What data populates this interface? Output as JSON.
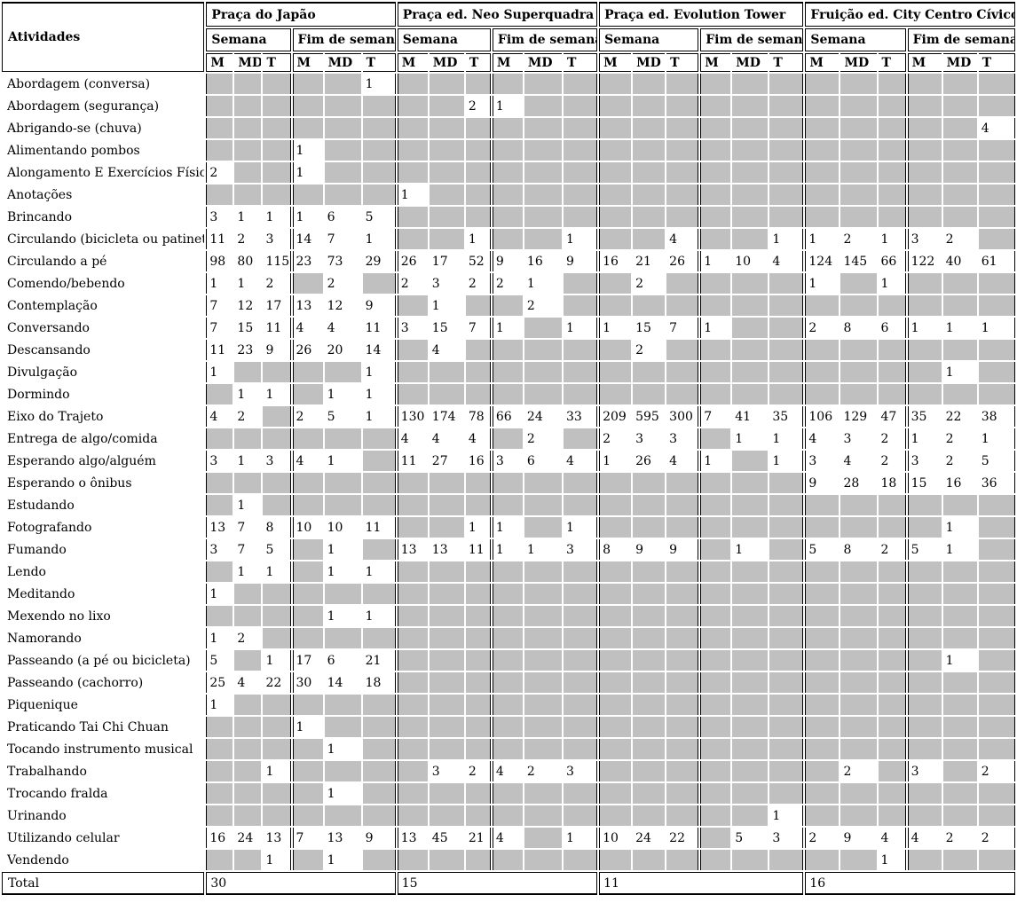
{
  "table": {
    "corner_label": "Atividades",
    "total_label": "Total",
    "period_labels": [
      "Semana",
      "Fim de semana"
    ],
    "time_labels": [
      "M",
      "MD",
      "T"
    ],
    "locations": [
      {
        "name": "Praça do Japão",
        "total": 30
      },
      {
        "name": "Praça ed. Neo Superquadra",
        "total": 15
      },
      {
        "name": "Praça ed. Evolution Tower",
        "total": 11
      },
      {
        "name": "Fruição ed. City Centro Cívico",
        "total": 16
      }
    ],
    "rows": [
      {
        "activity": "Abordagem (conversa)",
        "cells": [
          null,
          null,
          null,
          null,
          null,
          1,
          null,
          null,
          null,
          null,
          null,
          null,
          null,
          null,
          null,
          null,
          null,
          null,
          null,
          null,
          null,
          null,
          null,
          null
        ]
      },
      {
        "activity": "Abordagem (segurança)",
        "cells": [
          null,
          null,
          null,
          null,
          null,
          null,
          null,
          null,
          2,
          1,
          null,
          null,
          null,
          null,
          null,
          null,
          null,
          null,
          null,
          null,
          null,
          null,
          null,
          null
        ]
      },
      {
        "activity": "Abrigando-se (chuva)",
        "cells": [
          null,
          null,
          null,
          null,
          null,
          null,
          null,
          null,
          null,
          null,
          null,
          null,
          null,
          null,
          null,
          null,
          null,
          null,
          null,
          null,
          null,
          null,
          null,
          4
        ]
      },
      {
        "activity": "Alimentando pombos",
        "cells": [
          null,
          null,
          null,
          1,
          null,
          null,
          null,
          null,
          null,
          null,
          null,
          null,
          null,
          null,
          null,
          null,
          null,
          null,
          null,
          null,
          null,
          null,
          null,
          null
        ]
      },
      {
        "activity": "Alongamento E Exercícios Físicos",
        "cells": [
          2,
          null,
          null,
          1,
          null,
          null,
          null,
          null,
          null,
          null,
          null,
          null,
          null,
          null,
          null,
          null,
          null,
          null,
          null,
          null,
          null,
          null,
          null,
          null
        ]
      },
      {
        "activity": "Anotações",
        "cells": [
          null,
          null,
          null,
          null,
          null,
          null,
          1,
          null,
          null,
          null,
          null,
          null,
          null,
          null,
          null,
          null,
          null,
          null,
          null,
          null,
          null,
          null,
          null,
          null
        ]
      },
      {
        "activity": "Brincando",
        "cells": [
          3,
          1,
          1,
          1,
          6,
          5,
          null,
          null,
          null,
          null,
          null,
          null,
          null,
          null,
          null,
          null,
          null,
          null,
          null,
          null,
          null,
          null,
          null,
          null
        ]
      },
      {
        "activity": "Circulando (bicicleta ou patinete)",
        "cells": [
          11,
          2,
          3,
          14,
          7,
          1,
          null,
          null,
          1,
          null,
          null,
          1,
          null,
          null,
          4,
          null,
          null,
          1,
          1,
          2,
          1,
          3,
          2,
          null
        ]
      },
      {
        "activity": "Circulando a pé",
        "cells": [
          98,
          80,
          115,
          23,
          73,
          29,
          26,
          17,
          52,
          9,
          16,
          9,
          16,
          21,
          26,
          1,
          10,
          4,
          124,
          145,
          66,
          122,
          40,
          61
        ]
      },
      {
        "activity": "Comendo/bebendo",
        "cells": [
          1,
          1,
          2,
          null,
          2,
          null,
          2,
          3,
          2,
          2,
          1,
          null,
          null,
          2,
          null,
          null,
          null,
          null,
          1,
          null,
          1,
          null,
          null,
          null
        ]
      },
      {
        "activity": "Contemplação",
        "cells": [
          7,
          12,
          17,
          13,
          12,
          9,
          null,
          1,
          null,
          null,
          2,
          null,
          null,
          null,
          null,
          null,
          null,
          null,
          null,
          null,
          null,
          null,
          null,
          null
        ]
      },
      {
        "activity": "Conversando",
        "cells": [
          7,
          15,
          11,
          4,
          4,
          11,
          3,
          15,
          7,
          1,
          null,
          1,
          1,
          15,
          7,
          1,
          null,
          null,
          2,
          8,
          6,
          1,
          1,
          1
        ]
      },
      {
        "activity": "Descansando",
        "cells": [
          11,
          23,
          9,
          26,
          20,
          14,
          null,
          4,
          null,
          null,
          null,
          null,
          null,
          2,
          null,
          null,
          null,
          null,
          null,
          null,
          null,
          null,
          null,
          null
        ]
      },
      {
        "activity": "Divulgação",
        "cells": [
          1,
          null,
          null,
          null,
          null,
          1,
          null,
          null,
          null,
          null,
          null,
          null,
          null,
          null,
          null,
          null,
          null,
          null,
          null,
          null,
          null,
          null,
          1,
          null
        ]
      },
      {
        "activity": "Dormindo",
        "cells": [
          null,
          1,
          1,
          null,
          1,
          1,
          null,
          null,
          null,
          null,
          null,
          null,
          null,
          null,
          null,
          null,
          null,
          null,
          null,
          null,
          null,
          null,
          null,
          null
        ]
      },
      {
        "activity": "Eixo do Trajeto",
        "cells": [
          4,
          2,
          null,
          2,
          5,
          1,
          130,
          174,
          78,
          66,
          24,
          33,
          209,
          595,
          300,
          7,
          41,
          35,
          106,
          129,
          47,
          35,
          22,
          38
        ]
      },
      {
        "activity": "Entrega de algo/comida",
        "cells": [
          null,
          null,
          null,
          null,
          null,
          null,
          4,
          4,
          4,
          null,
          2,
          null,
          2,
          3,
          3,
          null,
          1,
          1,
          4,
          3,
          2,
          1,
          2,
          1
        ]
      },
      {
        "activity": "Esperando algo/alguém",
        "cells": [
          3,
          1,
          3,
          4,
          1,
          null,
          11,
          27,
          16,
          3,
          6,
          4,
          1,
          26,
          4,
          1,
          null,
          1,
          3,
          4,
          2,
          3,
          2,
          5
        ]
      },
      {
        "activity": "Esperando o ônibus",
        "cells": [
          null,
          null,
          null,
          null,
          null,
          null,
          null,
          null,
          null,
          null,
          null,
          null,
          null,
          null,
          null,
          null,
          null,
          null,
          9,
          28,
          18,
          15,
          16,
          36
        ]
      },
      {
        "activity": "Estudando",
        "cells": [
          null,
          1,
          null,
          null,
          null,
          null,
          null,
          null,
          null,
          null,
          null,
          null,
          null,
          null,
          null,
          null,
          null,
          null,
          null,
          null,
          null,
          null,
          null,
          null
        ]
      },
      {
        "activity": "Fotografando",
        "cells": [
          13,
          7,
          8,
          10,
          10,
          11,
          null,
          null,
          1,
          1,
          null,
          1,
          null,
          null,
          null,
          null,
          null,
          null,
          null,
          null,
          null,
          null,
          1,
          null
        ]
      },
      {
        "activity": "Fumando",
        "cells": [
          3,
          7,
          5,
          null,
          1,
          null,
          13,
          13,
          11,
          1,
          1,
          3,
          8,
          9,
          9,
          null,
          1,
          null,
          5,
          8,
          2,
          5,
          1,
          null
        ]
      },
      {
        "activity": "Lendo",
        "cells": [
          null,
          1,
          1,
          null,
          1,
          1,
          null,
          null,
          null,
          null,
          null,
          null,
          null,
          null,
          null,
          null,
          null,
          null,
          null,
          null,
          null,
          null,
          null,
          null
        ]
      },
      {
        "activity": "Meditando",
        "cells": [
          1,
          null,
          null,
          null,
          null,
          null,
          null,
          null,
          null,
          null,
          null,
          null,
          null,
          null,
          null,
          null,
          null,
          null,
          null,
          null,
          null,
          null,
          null,
          null
        ]
      },
      {
        "activity": "Mexendo no lixo",
        "cells": [
          null,
          null,
          null,
          null,
          1,
          1,
          null,
          null,
          null,
          null,
          null,
          null,
          null,
          null,
          null,
          null,
          null,
          null,
          null,
          null,
          null,
          null,
          null,
          null
        ]
      },
      {
        "activity": "Namorando",
        "cells": [
          1,
          2,
          null,
          null,
          null,
          null,
          null,
          null,
          null,
          null,
          null,
          null,
          null,
          null,
          null,
          null,
          null,
          null,
          null,
          null,
          null,
          null,
          null,
          null
        ]
      },
      {
        "activity": "Passeando (a pé ou bicicleta)",
        "cells": [
          5,
          null,
          1,
          17,
          6,
          21,
          null,
          null,
          null,
          null,
          null,
          null,
          null,
          null,
          null,
          null,
          null,
          null,
          null,
          null,
          null,
          null,
          1,
          null
        ]
      },
      {
        "activity": "Passeando (cachorro)",
        "cells": [
          25,
          4,
          22,
          30,
          14,
          18,
          null,
          null,
          null,
          null,
          null,
          null,
          null,
          null,
          null,
          null,
          null,
          null,
          null,
          null,
          null,
          null,
          null,
          null
        ]
      },
      {
        "activity": "Piquenique",
        "cells": [
          1,
          null,
          null,
          null,
          null,
          null,
          null,
          null,
          null,
          null,
          null,
          null,
          null,
          null,
          null,
          null,
          null,
          null,
          null,
          null,
          null,
          null,
          null,
          null
        ]
      },
      {
        "activity": "Praticando Tai Chi Chuan",
        "cells": [
          null,
          null,
          null,
          1,
          null,
          null,
          null,
          null,
          null,
          null,
          null,
          null,
          null,
          null,
          null,
          null,
          null,
          null,
          null,
          null,
          null,
          null,
          null,
          null
        ]
      },
      {
        "activity": "Tocando instrumento musical",
        "cells": [
          null,
          null,
          null,
          null,
          1,
          null,
          null,
          null,
          null,
          null,
          null,
          null,
          null,
          null,
          null,
          null,
          null,
          null,
          null,
          null,
          null,
          null,
          null,
          null
        ]
      },
      {
        "activity": "Trabalhando",
        "cells": [
          null,
          null,
          1,
          null,
          null,
          null,
          null,
          3,
          2,
          4,
          2,
          3,
          null,
          null,
          null,
          null,
          null,
          null,
          null,
          2,
          null,
          3,
          null,
          2
        ]
      },
      {
        "activity": "Trocando fralda",
        "cells": [
          null,
          null,
          null,
          null,
          1,
          null,
          null,
          null,
          null,
          null,
          null,
          null,
          null,
          null,
          null,
          null,
          null,
          null,
          null,
          null,
          null,
          null,
          null,
          null
        ]
      },
      {
        "activity": "Urinando",
        "cells": [
          null,
          null,
          null,
          null,
          null,
          null,
          null,
          null,
          null,
          null,
          null,
          null,
          null,
          null,
          null,
          null,
          null,
          1,
          null,
          null,
          null,
          null,
          null,
          null
        ]
      },
      {
        "activity": "Utilizando celular",
        "cells": [
          16,
          24,
          13,
          7,
          13,
          9,
          13,
          45,
          21,
          4,
          null,
          1,
          10,
          24,
          22,
          null,
          5,
          3,
          2,
          9,
          4,
          4,
          2,
          2
        ]
      },
      {
        "activity": "Vendendo",
        "cells": [
          null,
          null,
          1,
          null,
          1,
          null,
          null,
          null,
          null,
          null,
          null,
          null,
          null,
          null,
          null,
          null,
          null,
          null,
          null,
          null,
          1,
          null,
          null,
          null
        ]
      }
    ]
  },
  "colors": {
    "empty_cell": "#C0C0C0",
    "border": "#000000",
    "background": "#FFFFFF"
  }
}
